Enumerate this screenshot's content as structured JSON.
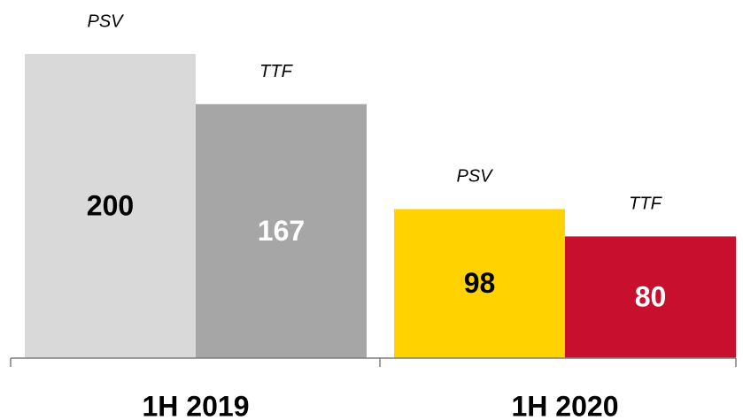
{
  "chart_data": {
    "type": "bar",
    "categories": [
      "1H 2019",
      "1H 2020"
    ],
    "series": [
      {
        "name": "PSV",
        "values": [
          200,
          98
        ],
        "colors": [
          "#d9d9d9",
          "#ffd200"
        ],
        "label_colors": [
          "#000000",
          "#000000"
        ]
      },
      {
        "name": "TTF",
        "values": [
          167,
          80
        ],
        "colors": [
          "#a6a6a6",
          "#c8102e"
        ],
        "label_colors": [
          "#ffffff",
          "#ffffff"
        ]
      }
    ]
  }
}
